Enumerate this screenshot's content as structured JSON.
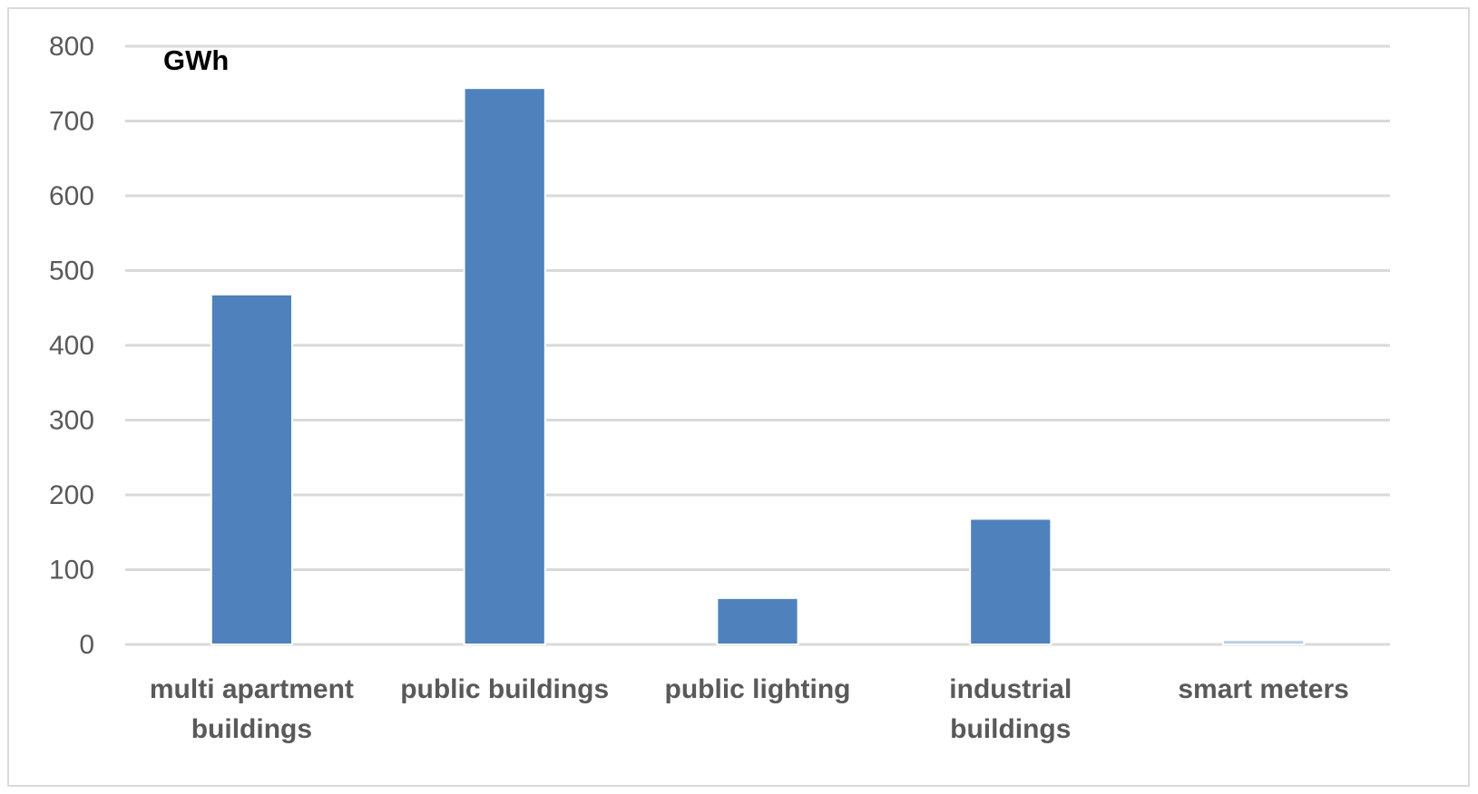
{
  "chart_data": {
    "type": "bar",
    "unit_label": "GWh",
    "categories": [
      [
        "multi apartment",
        "buildings"
      ],
      [
        "public buildings"
      ],
      [
        "public lighting"
      ],
      [
        "industrial",
        "buildings"
      ],
      [
        "smart meters"
      ]
    ],
    "values": [
      468,
      744,
      62,
      168,
      6
    ],
    "ylim": [
      0,
      800
    ],
    "yticks": [
      0,
      100,
      200,
      300,
      400,
      500,
      600,
      700,
      800
    ],
    "grid": true,
    "legend": "none",
    "colors": {
      "bar": "#4f81bd",
      "bar_border": "#ffffff",
      "gridline": "#d9d9d9"
    }
  }
}
